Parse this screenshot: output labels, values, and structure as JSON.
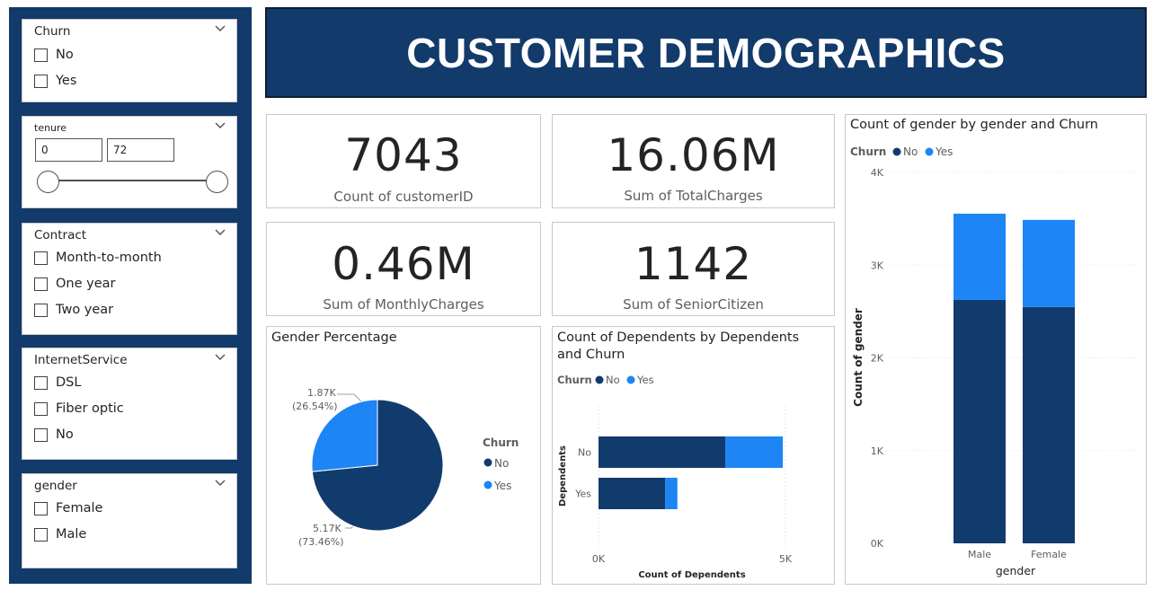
{
  "colors": {
    "navy": "#123a6b",
    "no": "#123b6d",
    "yes": "#1e85f5"
  },
  "header": {
    "title": "CUSTOMER DEMOGRAPHICS"
  },
  "slicers": {
    "churn": {
      "title": "Churn",
      "options": [
        "No",
        "Yes"
      ]
    },
    "tenure": {
      "title": "tenure",
      "min": "0",
      "max": "72"
    },
    "contract": {
      "title": "Contract",
      "options": [
        "Month-to-month",
        "One year",
        "Two year"
      ]
    },
    "internet": {
      "title": "InternetService",
      "options": [
        "DSL",
        "Fiber optic",
        "No"
      ]
    },
    "gender": {
      "title": "gender",
      "options": [
        "Female",
        "Male"
      ]
    }
  },
  "kpis": [
    {
      "value": "7043",
      "label": "Count of customerID"
    },
    {
      "value": "16.06M",
      "label": "Sum of TotalCharges"
    },
    {
      "value": "0.46M",
      "label": "Sum of MonthlyCharges"
    },
    {
      "value": "1142",
      "label": "Sum of SeniorCitizen"
    }
  ],
  "pie": {
    "title": "Gender Percentage",
    "legend_title": "Churn",
    "legend": [
      "No",
      "Yes"
    ],
    "labels": {
      "yes_value": "1.87K",
      "yes_pct": "(26.54%)",
      "no_value": "5.17K",
      "no_pct": "(73.46%)"
    }
  },
  "dependents": {
    "title_line1": "Count of Dependents by Dependents",
    "title_line2": "and Churn",
    "legend_title": "Churn",
    "legend": [
      "No",
      "Yes"
    ],
    "ylabel": "Dependents",
    "xlabel": "Count of Dependents",
    "x_ticks": [
      "0K",
      "5K"
    ]
  },
  "gender_chart": {
    "title": "Count of gender by gender and Churn",
    "legend_title": "Churn",
    "legend": [
      "No",
      "Yes"
    ],
    "ylabel": "Count of gender",
    "xlabel": "gender",
    "y_ticks": [
      "4K",
      "3K",
      "2K",
      "1K",
      "0K"
    ]
  },
  "chart_data": [
    {
      "type": "pie",
      "title": "Gender Percentage",
      "series": [
        {
          "name": "No",
          "value": 5170,
          "percent": 73.46
        },
        {
          "name": "Yes",
          "value": 1870,
          "percent": 26.54
        }
      ],
      "legend_position": "right"
    },
    {
      "type": "bar",
      "orientation": "horizontal",
      "stacked": true,
      "title": "Count of Dependents by Dependents and Churn",
      "categories": [
        "No",
        "Yes"
      ],
      "series": [
        {
          "name": "No",
          "values": [
            3390,
            1780
          ]
        },
        {
          "name": "Yes",
          "values": [
            1540,
            330
          ]
        }
      ],
      "xlabel": "Count of Dependents",
      "ylabel": "Dependents",
      "xlim": [
        0,
        5000
      ],
      "legend_position": "top-left"
    },
    {
      "type": "bar",
      "orientation": "vertical",
      "stacked": true,
      "title": "Count of gender by gender and Churn",
      "categories": [
        "Male",
        "Female"
      ],
      "series": [
        {
          "name": "No",
          "values": [
            2625,
            2549
          ]
        },
        {
          "name": "Yes",
          "values": [
            930,
            939
          ]
        }
      ],
      "xlabel": "gender",
      "ylabel": "Count of gender",
      "ylim": [
        0,
        4000
      ],
      "legend_position": "top-left"
    }
  ]
}
